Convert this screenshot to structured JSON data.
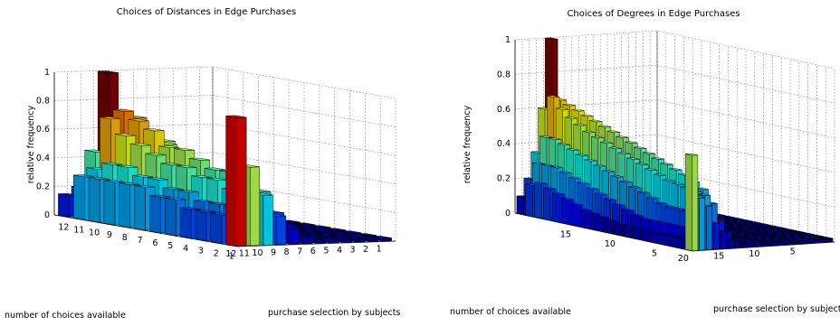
{
  "chart_data": [
    {
      "type": "bar3d",
      "title": "Choices of Distances in Edge Purchases",
      "xlabel": "number of choices available",
      "ylabel": "purchase selection by subjects",
      "zlabel": "relative frequency",
      "zlim": [
        0,
        1
      ],
      "z_ticks": [
        "0",
        "0.2",
        "0.4",
        "0.6",
        "0.8",
        "1"
      ],
      "x_ticks": [
        "1",
        "2",
        "3",
        "4",
        "5",
        "6",
        "7",
        "8",
        "9",
        "10",
        "11",
        "12"
      ],
      "y_ticks": [
        "12",
        "11",
        "10",
        "9",
        "8",
        "7",
        "6",
        "5",
        "4",
        "3",
        "2",
        "1"
      ],
      "colormap": "jet",
      "grid": true,
      "n": 12,
      "heights": [
        [
          0.02,
          0.02,
          0.02,
          0.02,
          0.02,
          0.02,
          0.02,
          0.02,
          0.02,
          0.02,
          0.02,
          0.02
        ],
        [
          0.12,
          0.05,
          0.04,
          0.03,
          0.02,
          0.02,
          0.02,
          0.02,
          0.02,
          0.02,
          0.02,
          0.02
        ],
        [
          0.15,
          0.15,
          0.15,
          0.07,
          0.04,
          0.03,
          0.02,
          0.02,
          0.02,
          0.02,
          0.02,
          0.02
        ],
        [
          0.22,
          0.2,
          0.25,
          0.2,
          0.15,
          0.1,
          0.06,
          0.04,
          0.02,
          0.02,
          0.02,
          0.02
        ],
        [
          0.3,
          0.25,
          0.35,
          0.3,
          0.25,
          0.2,
          0.15,
          0.1,
          0.06,
          0.03,
          0.02,
          0.02
        ],
        [
          0.4,
          0.35,
          0.45,
          0.4,
          0.35,
          0.3,
          0.25,
          0.2,
          0.15,
          0.08,
          0.04,
          0.02
        ],
        [
          0.5,
          0.55,
          0.55,
          0.45,
          0.4,
          0.35,
          0.3,
          0.25,
          0.2,
          0.15,
          0.1,
          0.05
        ],
        [
          0.6,
          0.7,
          0.6,
          0.55,
          0.5,
          0.45,
          0.4,
          0.35,
          0.3,
          0.25,
          0.2,
          0.1
        ],
        [
          1.0,
          0.75,
          0.7,
          0.65,
          0.55,
          0.55,
          0.5,
          0.45,
          0.45,
          0.4,
          0.35,
          0.2
        ],
        [
          0.45,
          0.7,
          0.6,
          0.55,
          0.5,
          0.45,
          0.45,
          0.4,
          0.4,
          0.35,
          0.35,
          0.35
        ],
        [
          0.2,
          0.35,
          0.4,
          0.4,
          0.35,
          0.35,
          0.3,
          0.3,
          0.25,
          0.25,
          0.25,
          0.55
        ],
        [
          0.15,
          0.3,
          0.3,
          0.3,
          0.3,
          0.3,
          0.25,
          0.25,
          0.2,
          0.2,
          0.2,
          0.9
        ]
      ]
    },
    {
      "type": "bar3d",
      "title": "Choices of Degrees in Edge Purchases",
      "xlabel": "number of choices available",
      "ylabel": "purchase selection by subjects",
      "zlabel": "relative frequency",
      "zlim": [
        0,
        1
      ],
      "z_ticks": [
        "0",
        "0.2",
        "0.4",
        "0.6",
        "0.8",
        "1"
      ],
      "x_ticks": [
        "5",
        "10",
        "15",
        "20"
      ],
      "y_ticks": [
        "15",
        "10",
        "5"
      ],
      "colormap": "jet",
      "grid": true,
      "n": 20,
      "heights": [
        [
          0.02,
          0.02,
          0.02,
          0.02,
          0.02,
          0.02,
          0.02,
          0.02,
          0.02,
          0.02,
          0.02,
          0.02,
          0.02,
          0.02,
          0.02,
          0.02,
          0.02,
          0.02,
          0.02,
          0.02
        ],
        [
          0.05,
          0.02,
          0.02,
          0.02,
          0.02,
          0.02,
          0.02,
          0.02,
          0.02,
          0.02,
          0.02,
          0.02,
          0.02,
          0.02,
          0.02,
          0.02,
          0.02,
          0.02,
          0.02,
          0.02
        ],
        [
          0.08,
          0.06,
          0.03,
          0.02,
          0.02,
          0.02,
          0.02,
          0.02,
          0.02,
          0.02,
          0.02,
          0.02,
          0.02,
          0.02,
          0.02,
          0.02,
          0.02,
          0.02,
          0.02,
          0.02
        ],
        [
          0.1,
          0.08,
          0.06,
          0.04,
          0.02,
          0.02,
          0.02,
          0.02,
          0.02,
          0.02,
          0.02,
          0.02,
          0.02,
          0.02,
          0.02,
          0.02,
          0.02,
          0.02,
          0.02,
          0.02
        ],
        [
          0.13,
          0.11,
          0.09,
          0.07,
          0.05,
          0.03,
          0.02,
          0.02,
          0.02,
          0.02,
          0.02,
          0.02,
          0.02,
          0.02,
          0.02,
          0.02,
          0.02,
          0.02,
          0.02,
          0.02
        ],
        [
          0.16,
          0.14,
          0.12,
          0.1,
          0.08,
          0.06,
          0.04,
          0.02,
          0.02,
          0.02,
          0.02,
          0.02,
          0.02,
          0.02,
          0.02,
          0.02,
          0.02,
          0.02,
          0.02,
          0.02
        ],
        [
          0.2,
          0.18,
          0.16,
          0.14,
          0.12,
          0.1,
          0.08,
          0.05,
          0.03,
          0.02,
          0.02,
          0.02,
          0.02,
          0.02,
          0.02,
          0.02,
          0.02,
          0.02,
          0.02,
          0.02
        ],
        [
          0.24,
          0.22,
          0.2,
          0.18,
          0.16,
          0.14,
          0.12,
          0.1,
          0.07,
          0.04,
          0.02,
          0.02,
          0.02,
          0.02,
          0.02,
          0.02,
          0.02,
          0.02,
          0.02,
          0.02
        ],
        [
          0.28,
          0.26,
          0.24,
          0.22,
          0.2,
          0.18,
          0.16,
          0.14,
          0.12,
          0.09,
          0.06,
          0.03,
          0.02,
          0.02,
          0.02,
          0.02,
          0.02,
          0.02,
          0.02,
          0.02
        ],
        [
          0.33,
          0.31,
          0.29,
          0.27,
          0.25,
          0.23,
          0.21,
          0.19,
          0.17,
          0.15,
          0.12,
          0.08,
          0.05,
          0.02,
          0.02,
          0.02,
          0.02,
          0.02,
          0.02,
          0.02
        ],
        [
          0.38,
          0.36,
          0.34,
          0.32,
          0.3,
          0.28,
          0.26,
          0.24,
          0.22,
          0.2,
          0.18,
          0.15,
          0.12,
          0.08,
          0.05,
          0.02,
          0.02,
          0.02,
          0.02,
          0.02
        ],
        [
          0.44,
          0.42,
          0.4,
          0.38,
          0.36,
          0.34,
          0.32,
          0.3,
          0.28,
          0.26,
          0.24,
          0.22,
          0.19,
          0.16,
          0.12,
          0.08,
          0.04,
          0.02,
          0.02,
          0.02
        ],
        [
          0.5,
          0.48,
          0.46,
          0.44,
          0.42,
          0.4,
          0.38,
          0.36,
          0.34,
          0.32,
          0.3,
          0.28,
          0.26,
          0.23,
          0.19,
          0.15,
          0.11,
          0.06,
          0.03,
          0.02
        ],
        [
          0.56,
          0.54,
          0.52,
          0.5,
          0.48,
          0.46,
          0.44,
          0.42,
          0.4,
          0.38,
          0.36,
          0.34,
          0.32,
          0.3,
          0.27,
          0.23,
          0.19,
          0.14,
          0.08,
          0.03
        ],
        [
          0.62,
          0.6,
          0.58,
          0.56,
          0.54,
          0.52,
          0.5,
          0.48,
          0.46,
          0.44,
          0.42,
          0.4,
          0.38,
          0.36,
          0.34,
          0.31,
          0.27,
          0.23,
          0.15,
          0.05
        ],
        [
          1.0,
          0.66,
          0.64,
          0.62,
          0.6,
          0.58,
          0.56,
          0.54,
          0.52,
          0.5,
          0.48,
          0.46,
          0.44,
          0.42,
          0.4,
          0.38,
          0.35,
          0.32,
          0.25,
          0.1
        ],
        [
          0.6,
          0.68,
          0.62,
          0.58,
          0.55,
          0.52,
          0.5,
          0.48,
          0.46,
          0.44,
          0.42,
          0.4,
          0.38,
          0.36,
          0.34,
          0.33,
          0.32,
          0.31,
          0.3,
          0.15
        ],
        [
          0.35,
          0.45,
          0.45,
          0.43,
          0.41,
          0.39,
          0.37,
          0.35,
          0.33,
          0.31,
          0.29,
          0.27,
          0.25,
          0.23,
          0.21,
          0.2,
          0.2,
          0.2,
          0.3,
          0.25
        ],
        [
          0.2,
          0.3,
          0.3,
          0.3,
          0.28,
          0.26,
          0.24,
          0.22,
          0.2,
          0.18,
          0.16,
          0.14,
          0.12,
          0.11,
          0.11,
          0.11,
          0.11,
          0.11,
          0.11,
          0.3
        ],
        [
          0.1,
          0.18,
          0.2,
          0.18,
          0.16,
          0.14,
          0.12,
          0.1,
          0.09,
          0.08,
          0.07,
          0.06,
          0.06,
          0.06,
          0.06,
          0.06,
          0.06,
          0.06,
          0.06,
          0.55
        ]
      ]
    }
  ]
}
